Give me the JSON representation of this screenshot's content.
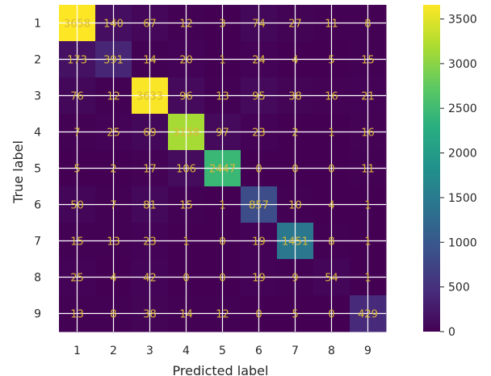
{
  "chart_data": {
    "type": "heatmap",
    "title": "",
    "xlabel": "Predicted label",
    "ylabel": "True label",
    "x_categories": [
      "1",
      "2",
      "3",
      "4",
      "5",
      "6",
      "7",
      "8",
      "9"
    ],
    "y_categories": [
      "1",
      "2",
      "3",
      "4",
      "5",
      "6",
      "7",
      "8",
      "9"
    ],
    "matrix": [
      [
        3658,
        140,
        67,
        12,
        3,
        74,
        27,
        11,
        8
      ],
      [
        173,
        391,
        14,
        20,
        1,
        24,
        4,
        5,
        15
      ],
      [
        76,
        12,
        3633,
        96,
        13,
        95,
        38,
        16,
        21
      ],
      [
        7,
        25,
        69,
        3158,
        97,
        23,
        2,
        1,
        16
      ],
      [
        5,
        2,
        17,
        106,
        2447,
        0,
        0,
        0,
        11
      ],
      [
        50,
        7,
        81,
        15,
        1,
        857,
        10,
        4,
        1
      ],
      [
        15,
        13,
        23,
        1,
        0,
        19,
        1451,
        8,
        1
      ],
      [
        25,
        4,
        42,
        0,
        0,
        19,
        9,
        54,
        1
      ],
      [
        13,
        8,
        38,
        14,
        12,
        0,
        5,
        0,
        429
      ]
    ],
    "colormap": "viridis",
    "value_range": [
      0,
      3658
    ],
    "colorbar_ticks": [
      "3500",
      "3000",
      "2500",
      "2000",
      "1500",
      "1000",
      "500",
      "0"
    ],
    "colorbar_tick_values": [
      3500,
      3000,
      2500,
      2000,
      1500,
      1000,
      500,
      0
    ],
    "grid": true,
    "text_color": "#d8b93a",
    "grid_color": "#ffffff"
  }
}
